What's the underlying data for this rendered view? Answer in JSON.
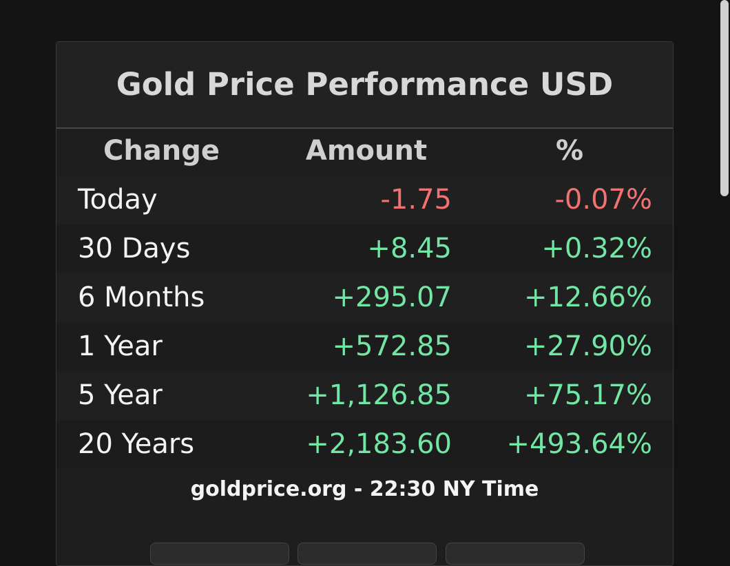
{
  "panel": {
    "title": "Gold Price Performance USD",
    "table": {
      "header": [
        "Change",
        "Amount",
        "%"
      ],
      "rows": [
        [
          "Today",
          "-1.75",
          "-0.07%"
        ],
        [
          "30 Days",
          "+8.45",
          "+0.32%"
        ],
        [
          "6 Months",
          "+295.07",
          "+12.66%"
        ],
        [
          "1 Year",
          "+572.85",
          "+27.90%"
        ],
        [
          "5 Year",
          "+1,126.85",
          "+75.17%"
        ],
        [
          "20 Years",
          "+2,183.60",
          "+493.64%"
        ]
      ]
    },
    "footer": "goldprice.org - 22:30 NY Time"
  }
}
